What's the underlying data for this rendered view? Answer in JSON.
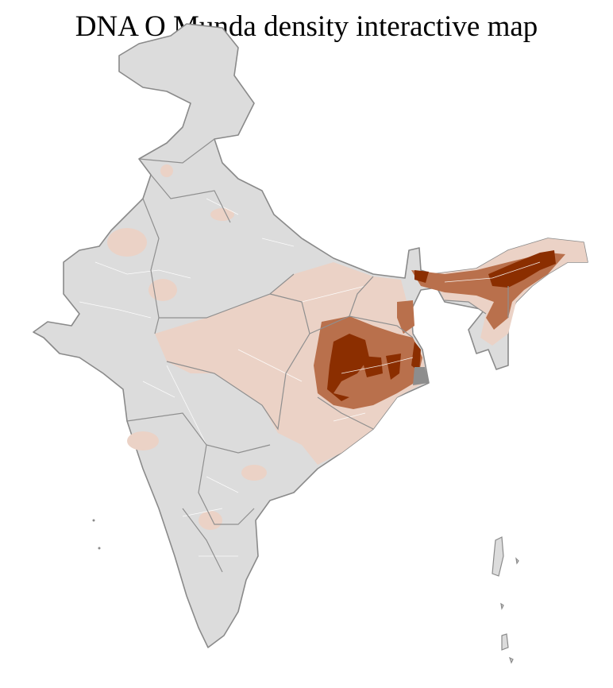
{
  "title": "DNA O Munda density interactive map",
  "map": {
    "region": "India districts",
    "colors": {
      "no_data": "#dcdcdc",
      "low": "#ebd2c6",
      "medium": "#b9704c",
      "high": "#8b2e00",
      "border": "#8a8a8a",
      "district_border": "#ffffff"
    }
  }
}
